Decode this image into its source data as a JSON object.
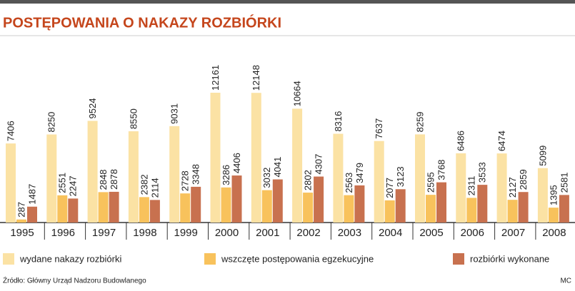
{
  "chart_data": {
    "type": "bar",
    "title": "POSTĘPOWANIA O NAKAZY ROZBIÓRKI",
    "categories": [
      "1995",
      "1996",
      "1997",
      "1998",
      "1999",
      "2000",
      "2001",
      "2002",
      "2003",
      "2004",
      "2005",
      "2006",
      "2007",
      "2008"
    ],
    "series": [
      {
        "name": "wydane nakazy rozbiórki",
        "color": "#fbe2a4",
        "values": [
          7406,
          8250,
          9524,
          8550,
          9031,
          12161,
          12148,
          10664,
          8316,
          7637,
          8259,
          6486,
          6474,
          5099
        ]
      },
      {
        "name": "wszczęte postępowania egzekucyjne",
        "color": "#f8c25c",
        "values": [
          287,
          2551,
          2848,
          2382,
          2728,
          3286,
          3032,
          2802,
          2563,
          2077,
          2595,
          2311,
          2127,
          1395
        ]
      },
      {
        "name": "rozbiórki wykonane",
        "color": "#c8714f",
        "values": [
          1487,
          2247,
          2878,
          2114,
          3348,
          4406,
          4041,
          4307,
          3479,
          3123,
          3768,
          3533,
          2859,
          2581
        ]
      }
    ],
    "source": "Źródło: Główny Urząd Nadzoru Budowlanego",
    "credit": "MC"
  }
}
